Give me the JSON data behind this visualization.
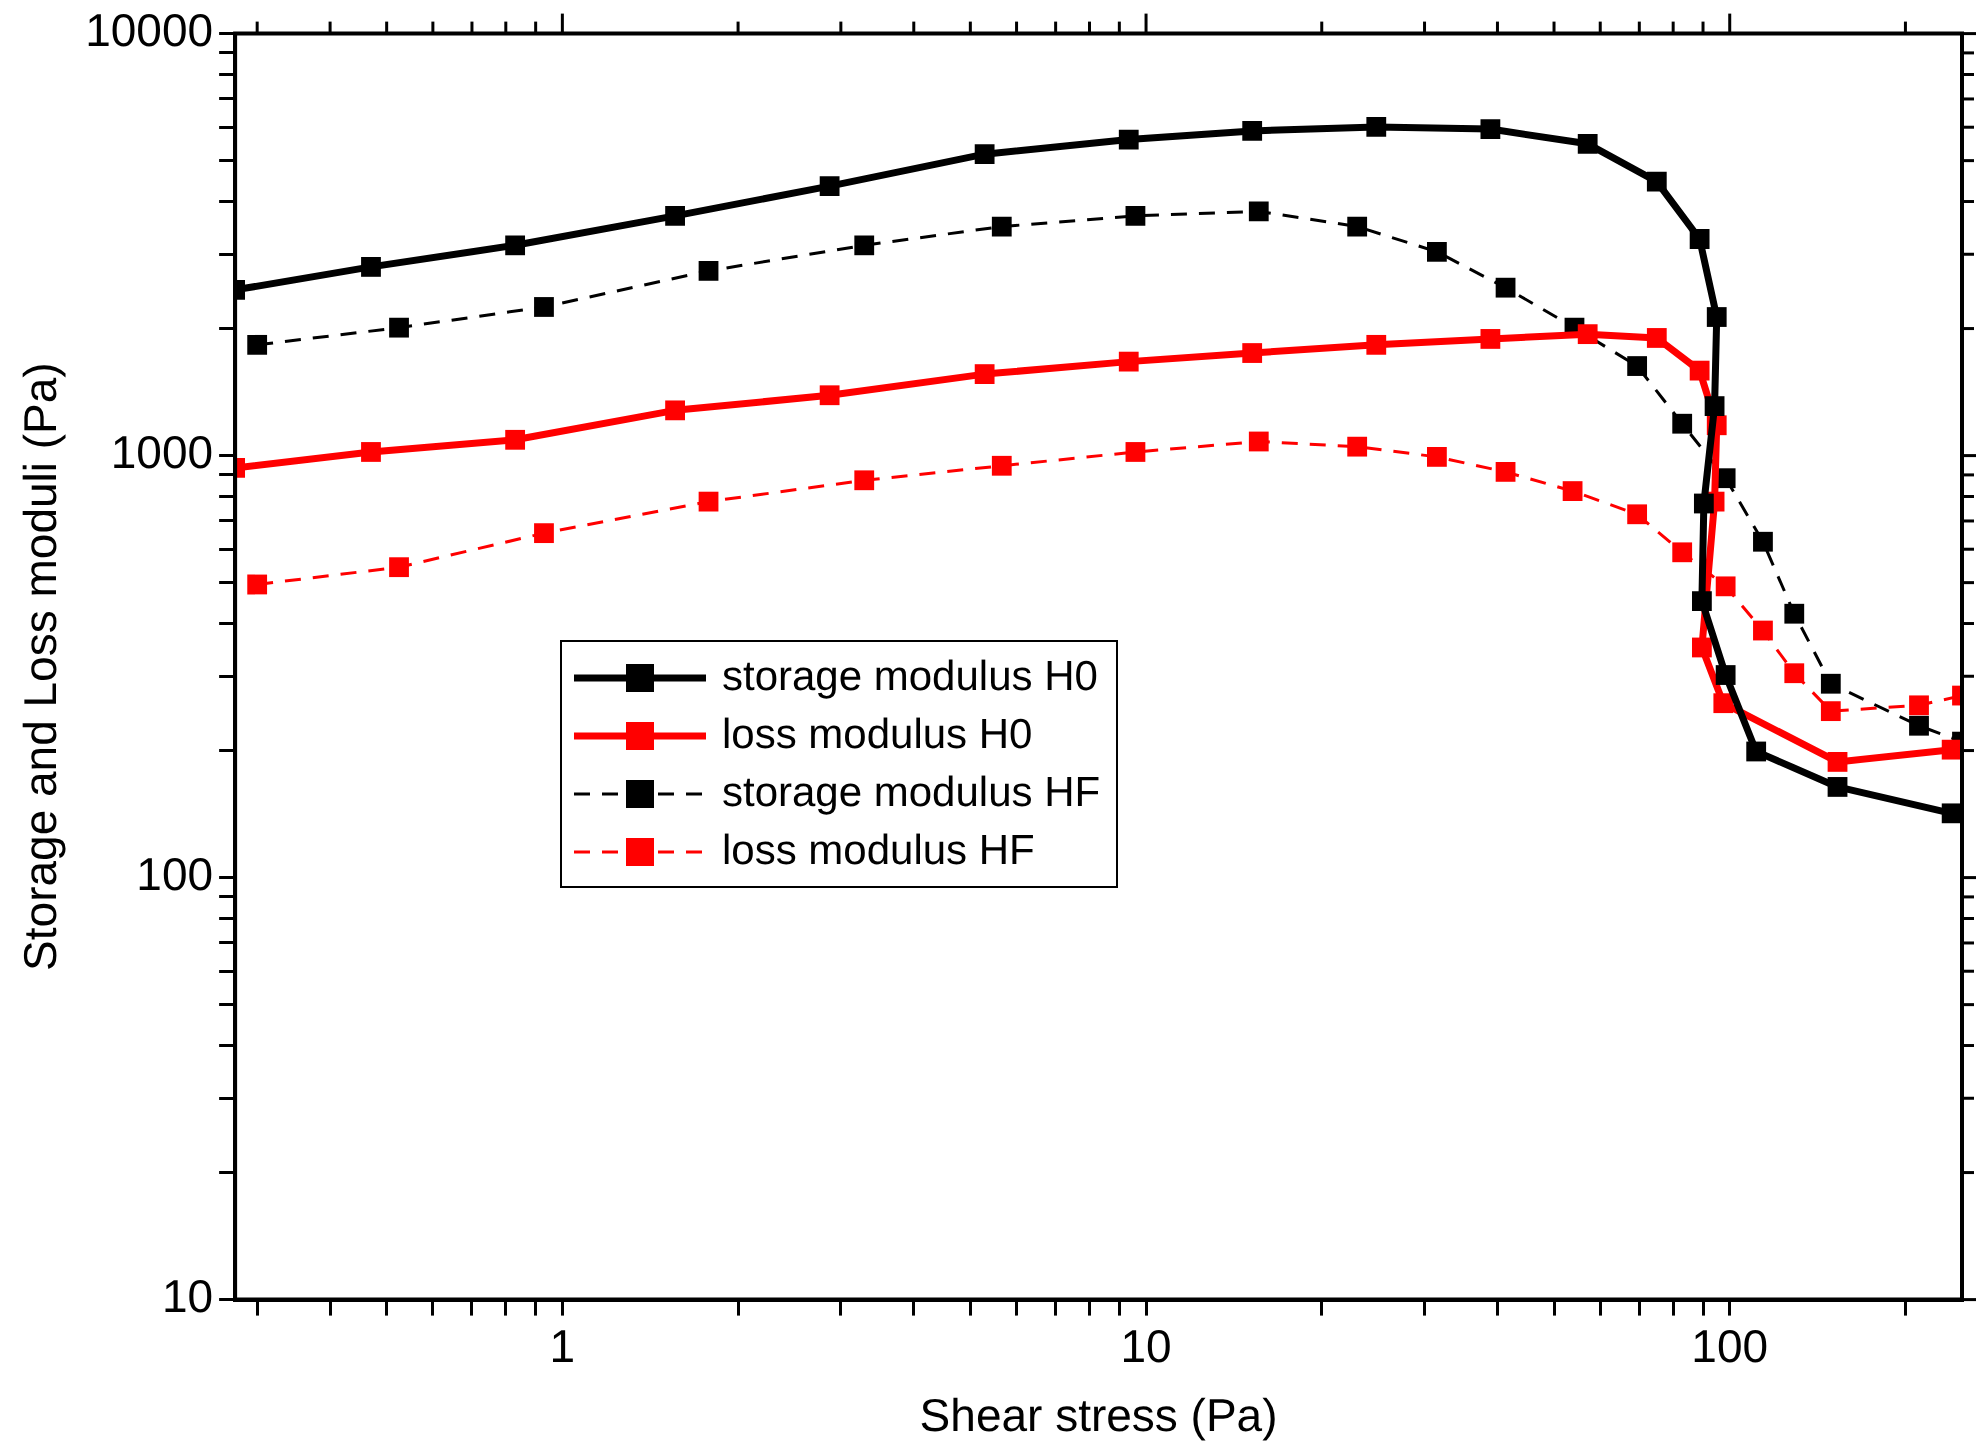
{
  "chart_data": {
    "type": "line",
    "xlabel": "Shear stress (Pa)",
    "ylabel": "Storage and Loss moduli (Pa)",
    "log": "xy",
    "marker": "square",
    "legend": "left",
    "grid": false,
    "xlim": [
      0.275,
      250
    ],
    "ylim": [
      10,
      10000
    ],
    "xticks": [
      {
        "value": 0.3,
        "label": null
      },
      {
        "value": 0.4,
        "label": null
      },
      {
        "value": 0.5,
        "label": null
      },
      {
        "value": 0.6,
        "label": null
      },
      {
        "value": 0.7,
        "label": null
      },
      {
        "value": 0.8,
        "label": null
      },
      {
        "value": 0.9,
        "label": null
      },
      1,
      {
        "value": 2,
        "label": null
      },
      {
        "value": 3,
        "label": null
      },
      {
        "value": 4,
        "label": null
      },
      {
        "value": 5,
        "label": null
      },
      {
        "value": 6,
        "label": null
      },
      {
        "value": 7,
        "label": null
      },
      {
        "value": 8,
        "label": null
      },
      {
        "value": 9,
        "label": null
      },
      10,
      {
        "value": 20,
        "label": null
      },
      {
        "value": 30,
        "label": null
      },
      {
        "value": 40,
        "label": null
      },
      {
        "value": 50,
        "label": null
      },
      {
        "value": 60,
        "label": null
      },
      {
        "value": 70,
        "label": null
      },
      {
        "value": 80,
        "label": null
      },
      {
        "value": 90,
        "label": null
      },
      100,
      {
        "value": 200,
        "label": null
      }
    ],
    "yticks": [
      10,
      {
        "value": 20,
        "label": null
      },
      {
        "value": 30,
        "label": null
      },
      {
        "value": 40,
        "label": null
      },
      {
        "value": 50,
        "label": null
      },
      {
        "value": 60,
        "label": null
      },
      {
        "value": 70,
        "label": null
      },
      {
        "value": 80,
        "label": null
      },
      {
        "value": 90,
        "label": null
      },
      100,
      {
        "value": 200,
        "label": null
      },
      {
        "value": 300,
        "label": null
      },
      {
        "value": 400,
        "label": null
      },
      {
        "value": 500,
        "label": null
      },
      {
        "value": 600,
        "label": null
      },
      {
        "value": 700,
        "label": null
      },
      {
        "value": 800,
        "label": null
      },
      {
        "value": 900,
        "label": null
      },
      1000,
      {
        "value": 2000,
        "label": null
      },
      {
        "value": 3000,
        "label": null
      },
      {
        "value": 4000,
        "label": null
      },
      {
        "value": 5000,
        "label": null
      },
      {
        "value": 6000,
        "label": null
      },
      {
        "value": 7000,
        "label": null
      },
      {
        "value": 8000,
        "label": null
      },
      {
        "value": 9000,
        "label": null
      },
      10000
    ],
    "series": [
      {
        "name": "storage modulus H0",
        "color": "#000000",
        "line_style": "solid",
        "x": [
          0.275,
          0.47,
          0.83,
          1.56,
          2.87,
          5.29,
          9.34,
          15.2,
          24.8,
          38.9,
          57.1,
          75,
          88.8,
          95,
          94.2,
          90.3,
          89.6,
          98.4,
          111,
          153,
          240
        ],
        "values": [
          2470,
          2800,
          3150,
          3700,
          4350,
          5180,
          5610,
          5880,
          6010,
          5940,
          5480,
          4460,
          3260,
          2130,
          1310,
          770,
          452,
          302,
          199,
          164,
          142
        ]
      },
      {
        "name": "loss modulus H0",
        "color": "#ff0000",
        "line_style": "solid",
        "x": [
          0.275,
          0.47,
          0.83,
          1.56,
          2.87,
          5.29,
          9.34,
          15.2,
          24.8,
          38.9,
          57.1,
          75,
          88.8,
          95,
          94.2,
          89.6,
          97.5,
          111,
          153,
          240
        ],
        "values": [
          935,
          1020,
          1090,
          1280,
          1390,
          1560,
          1670,
          1750,
          1830,
          1890,
          1940,
          1900,
          1590,
          1180,
          778,
          351,
          259,
          null,
          188,
          201
        ]
      },
      {
        "name": "storage modulus HF",
        "color": "#000000",
        "line_style": "dashed",
        "x": [
          0.3,
          0.525,
          0.93,
          1.78,
          3.29,
          5.66,
          9.59,
          15.6,
          23,
          31.5,
          41.3,
          54.2,
          69.4,
          82.9,
          98.4,
          114,
          129,
          149,
          211,
          250
        ],
        "values": [
          1830,
          2010,
          2250,
          2740,
          3150,
          3490,
          3700,
          3790,
          3490,
          3040,
          2500,
          2010,
          1630,
          1190,
          884,
          625,
          422,
          288,
          229,
          210
        ]
      },
      {
        "name": "loss modulus HF",
        "color": "#ff0000",
        "line_style": "dashed",
        "x": [
          0.3,
          0.525,
          0.93,
          1.78,
          3.29,
          5.66,
          9.59,
          15.6,
          23,
          31.5,
          41.3,
          53.8,
          69.4,
          82.9,
          91,
          98.4,
          114,
          129,
          149,
          211,
          250
        ],
        "values": [
          495,
          544,
          655,
          778,
          874,
          946,
          1020,
          1080,
          1050,
          993,
          915,
          824,
          726,
          590,
          null,
          490,
          385,
          305,
          248,
          256,
          270
        ]
      }
    ]
  }
}
